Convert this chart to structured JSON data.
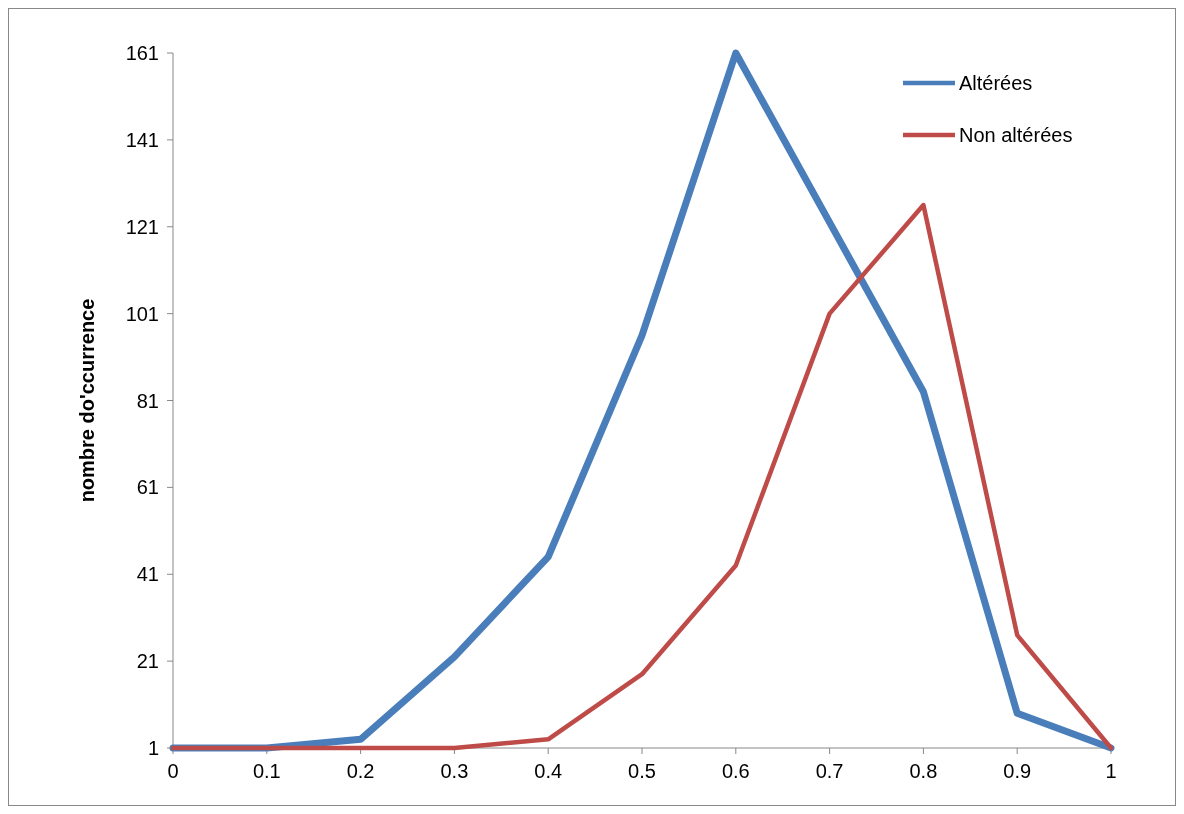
{
  "chart_data": {
    "type": "line",
    "ylabel": "nombre do'ccurrence",
    "categories": [
      "0",
      "0.1",
      "0.2",
      "0.3",
      "0.4",
      "0.5",
      "0.6",
      "0.7",
      "0.8",
      "0.9",
      "1"
    ],
    "series": [
      {
        "name": "Altérées",
        "color": "#4a7ebb",
        "values": [
          1,
          1,
          3,
          22,
          45,
          96,
          161,
          122,
          83,
          9,
          1
        ]
      },
      {
        "name": "Non altérées",
        "color": "#be4b48",
        "values": [
          1,
          1,
          1,
          1,
          3,
          18,
          43,
          101,
          126,
          27,
          1
        ]
      }
    ],
    "ylim": [
      1,
      161
    ],
    "yticks": [
      1,
      21,
      41,
      61,
      81,
      101,
      121,
      141,
      161
    ],
    "grid": false,
    "legend": "top right",
    "marker": "none",
    "line_style": "solid"
  }
}
